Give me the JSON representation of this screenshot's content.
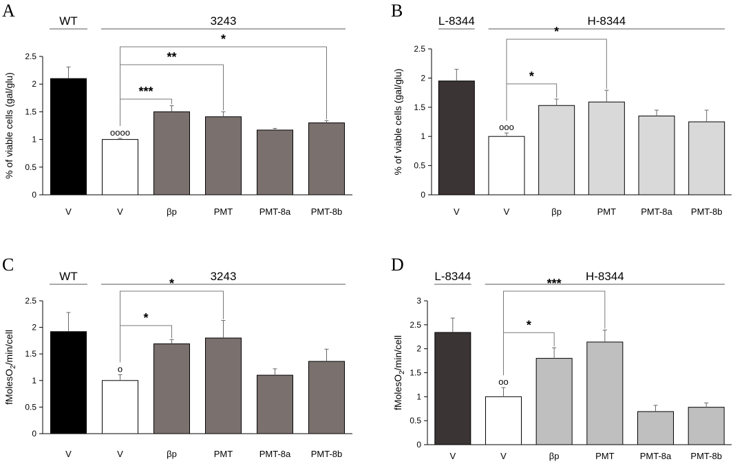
{
  "chart_data": [
    {
      "type": "bar",
      "panel": "A",
      "ylabel": "% of viable cells (gal/glu)",
      "ylim": [
        0,
        2.5
      ],
      "yticks": [
        "0",
        "0.5",
        "1",
        "1.5",
        "2",
        "2.5"
      ],
      "categories": [
        "V",
        "V",
        "βp",
        "PMT",
        "PMT-8a",
        "PMT-8b"
      ],
      "values": [
        2.1,
        1.0,
        1.5,
        1.41,
        1.17,
        1.3
      ],
      "errors": [
        0.21,
        0.02,
        0.11,
        0.09,
        0.03,
        0.04
      ],
      "colors": [
        "#000000",
        "#ffffff",
        "#7a706e",
        "#7a706e",
        "#7a706e",
        "#7a706e"
      ],
      "groups": [
        {
          "label": "WT",
          "from": 0,
          "to": 0
        },
        {
          "label": "3243",
          "from": 1,
          "to": 5
        }
      ],
      "circles": "oooo",
      "circle_bar": 1,
      "significance": [
        {
          "from": 1,
          "to": 2,
          "label": "***"
        },
        {
          "from": 1,
          "to": 3,
          "label": "**"
        },
        {
          "from": 1,
          "to": 5,
          "label": "*"
        }
      ]
    },
    {
      "type": "bar",
      "panel": "B",
      "ylabel": "% of viable cells (gal/glu)",
      "ylim": [
        0,
        2.5
      ],
      "yticks": [
        "0",
        "0.5",
        "1",
        "1.5",
        "2",
        "2.5"
      ],
      "categories": [
        "V",
        "V",
        "βp",
        "PMT",
        "PMT-8a",
        "PMT-8b"
      ],
      "values": [
        1.95,
        1.0,
        1.53,
        1.59,
        1.35,
        1.25
      ],
      "errors": [
        0.2,
        0.06,
        0.11,
        0.2,
        0.1,
        0.2
      ],
      "colors": [
        "#3b3434",
        "#ffffff",
        "#d9d9d9",
        "#d9d9d9",
        "#d9d9d9",
        "#d9d9d9"
      ],
      "groups": [
        {
          "label": "L-8344",
          "from": 0,
          "to": 0
        },
        {
          "label": "H-8344",
          "from": 1,
          "to": 5
        }
      ],
      "circles": "ooo",
      "circle_bar": 1,
      "significance": [
        {
          "from": 1,
          "to": 2,
          "label": "*"
        },
        {
          "from": 1,
          "to": 3,
          "label": "*"
        }
      ]
    },
    {
      "type": "bar",
      "panel": "C",
      "ylabel": "fMolesO2/min/cell",
      "ylim": [
        0,
        2.5
      ],
      "yticks": [
        "0",
        "0.5",
        "1",
        "1.5",
        "2",
        "2.5"
      ],
      "categories": [
        "V",
        "V",
        "βp",
        "PMT",
        "PMT-8a",
        "PMT-8b"
      ],
      "values": [
        1.92,
        1.0,
        1.69,
        1.8,
        1.1,
        1.36
      ],
      "errors": [
        0.36,
        0.11,
        0.08,
        0.33,
        0.12,
        0.23
      ],
      "colors": [
        "#000000",
        "#ffffff",
        "#7a706e",
        "#7a706e",
        "#7a706e",
        "#7a706e"
      ],
      "groups": [
        {
          "label": "WT",
          "from": 0,
          "to": 0
        },
        {
          "label": "3243",
          "from": 1,
          "to": 5
        }
      ],
      "circles": "o",
      "circle_bar": 1,
      "significance": [
        {
          "from": 1,
          "to": 2,
          "label": "*"
        },
        {
          "from": 1,
          "to": 3,
          "label": "*"
        }
      ]
    },
    {
      "type": "bar",
      "panel": "D",
      "ylabel": "fMolesO2/min/cell",
      "ylim": [
        0,
        3
      ],
      "yticks": [
        "0",
        "0.5",
        "1",
        "1.5",
        "2",
        "2.5",
        "3"
      ],
      "categories": [
        "V",
        "V",
        "βp",
        "PMT",
        "PMT-8a",
        "PMT-8b"
      ],
      "values": [
        2.34,
        1.0,
        1.8,
        2.14,
        0.69,
        0.78
      ],
      "errors": [
        0.3,
        0.19,
        0.22,
        0.25,
        0.13,
        0.09
      ],
      "colors": [
        "#3b3434",
        "#ffffff",
        "#bfbfbf",
        "#bfbfbf",
        "#bfbfbf",
        "#bfbfbf"
      ],
      "groups": [
        {
          "label": "L-8344",
          "from": 0,
          "to": 0
        },
        {
          "label": "H-8344",
          "from": 1,
          "to": 5
        }
      ],
      "circles": "oo",
      "circle_bar": 1,
      "significance": [
        {
          "from": 1,
          "to": 2,
          "label": "*"
        },
        {
          "from": 1,
          "to": 3,
          "label": "***"
        }
      ]
    }
  ]
}
